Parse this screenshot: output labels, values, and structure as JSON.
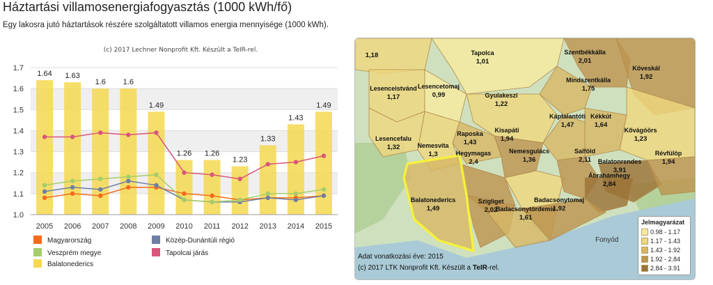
{
  "header": {
    "title": "Háztartási villamosenergiafogyasztás (1000 kWh/fő)",
    "subtitle": "Egy lakosra jutó háztartások részére szolgáltatott villamos energia mennyisége (1000 kWh)."
  },
  "chart_data": {
    "type": "bar+line",
    "credit": "(c) 2017 Lechner Nonprofit Kft. Készült a TeIR-rel.",
    "categories": [
      "2005",
      "2006",
      "2007",
      "2008",
      "2009",
      "2010",
      "2011",
      "2012",
      "2013",
      "2014",
      "2015"
    ],
    "ylim": [
      1.0,
      1.7
    ],
    "yticks": [
      "1.0",
      "1.1",
      "1.2",
      "1.3",
      "1.4",
      "1.5",
      "1.6",
      "1.7"
    ],
    "bar_series": {
      "name": "Balatonederics",
      "color": "#f5d850",
      "values": [
        1.64,
        1.63,
        1.6,
        1.6,
        1.49,
        1.26,
        1.26,
        1.23,
        1.33,
        1.43,
        1.49
      ],
      "labels": [
        "1.64",
        "1.63",
        "1.6",
        "1.6",
        "1.49",
        "1.26",
        "1.26",
        "1.23",
        "1.33",
        "1.43",
        "1.49"
      ]
    },
    "line_series": [
      {
        "name": "Magyarország",
        "color": "#f36b1c",
        "values": [
          1.08,
          1.1,
          1.09,
          1.13,
          1.13,
          1.1,
          1.09,
          1.07,
          1.08,
          1.08,
          1.09
        ]
      },
      {
        "name": "Közép-Dunántúli régió",
        "color": "#6e7fa3",
        "values": [
          1.11,
          1.13,
          1.12,
          1.16,
          1.14,
          1.07,
          1.06,
          1.06,
          1.08,
          1.07,
          1.09
        ]
      },
      {
        "name": "Veszprém megye",
        "color": "#a4cd6a",
        "values": [
          1.14,
          1.16,
          1.17,
          1.18,
          1.19,
          1.07,
          1.06,
          1.07,
          1.1,
          1.1,
          1.12
        ]
      },
      {
        "name": "Tapolcai járás",
        "color": "#d9567a",
        "values": [
          1.37,
          1.37,
          1.39,
          1.38,
          1.39,
          1.2,
          1.19,
          1.17,
          1.24,
          1.25,
          1.28
        ]
      }
    ],
    "legend": [
      {
        "name": "Magyarország",
        "color": "#f36b1c"
      },
      {
        "name": "Közép-Dunántúli régió",
        "color": "#6e7fa3"
      },
      {
        "name": "Veszprém megye",
        "color": "#a4cd6a"
      },
      {
        "name": "Tapolcai járás",
        "color": "#d9567a"
      },
      {
        "name": "Balatonederics",
        "color": "#f5d850"
      }
    ]
  },
  "map": {
    "footer_year": "Adat vonatkozási éve: 2015",
    "footer_credit_prefix": "(c) 2017 LTK Nonprofit Kft. Készült a ",
    "footer_credit_bold": "TeIR",
    "footer_credit_suffix": "-rel.",
    "lake_label": "Fonyód",
    "legend_title": "Jelmagyarázat",
    "legend": [
      {
        "label": "0.98 - 1.17",
        "color": "#f7eaa0"
      },
      {
        "label": "1.17 - 1.43",
        "color": "#eed77f"
      },
      {
        "label": "1.43 - 1.92",
        "color": "#d7b766"
      },
      {
        "label": "1.92 - 2.84",
        "color": "#bd9550"
      },
      {
        "label": "2.84 - 3.91",
        "color": "#9b7338"
      }
    ],
    "places": [
      {
        "name": "",
        "value": "1,18"
      },
      {
        "name": "Tapolca",
        "value": "1,01"
      },
      {
        "name": "Szentbékkálla",
        "value": "2,01"
      },
      {
        "name": "Mindszentkálla",
        "value": "1,75"
      },
      {
        "name": "Köveskál",
        "value": "1,92"
      },
      {
        "name": "Lesenceistvánd",
        "value": "1,17"
      },
      {
        "name": "Lesencetomaj",
        "value": "0,99"
      },
      {
        "name": "Gyulakeszi",
        "value": "1,22"
      },
      {
        "name": "Raposka",
        "value": "1,43"
      },
      {
        "name": "Kisapáti",
        "value": "1,94"
      },
      {
        "name": "Káptalantóti",
        "value": "1,47"
      },
      {
        "name": "Kékkút",
        "value": "1,64"
      },
      {
        "name": "Kővágóörs",
        "value": "1,23"
      },
      {
        "name": "Lesencefalu",
        "value": "1,32"
      },
      {
        "name": "Nemesvita",
        "value": "1,3"
      },
      {
        "name": "Hegymagas",
        "value": "2,4"
      },
      {
        "name": "Nemesgulács",
        "value": "1,36"
      },
      {
        "name": "Salföld",
        "value": "2,11"
      },
      {
        "name": "Balatonrendes",
        "value": "3,91"
      },
      {
        "name": "Révfülöp",
        "value": "1,94"
      },
      {
        "name": "Ábrahámhegy",
        "value": "2,84"
      },
      {
        "name": "Balatonederics",
        "value": "1,49"
      },
      {
        "name": "Szigliget",
        "value": "2,02"
      },
      {
        "name": "Badacsonytördemic",
        "value": "1,61"
      },
      {
        "name": "Badacsonytomaj",
        "value": "1,92"
      }
    ]
  }
}
